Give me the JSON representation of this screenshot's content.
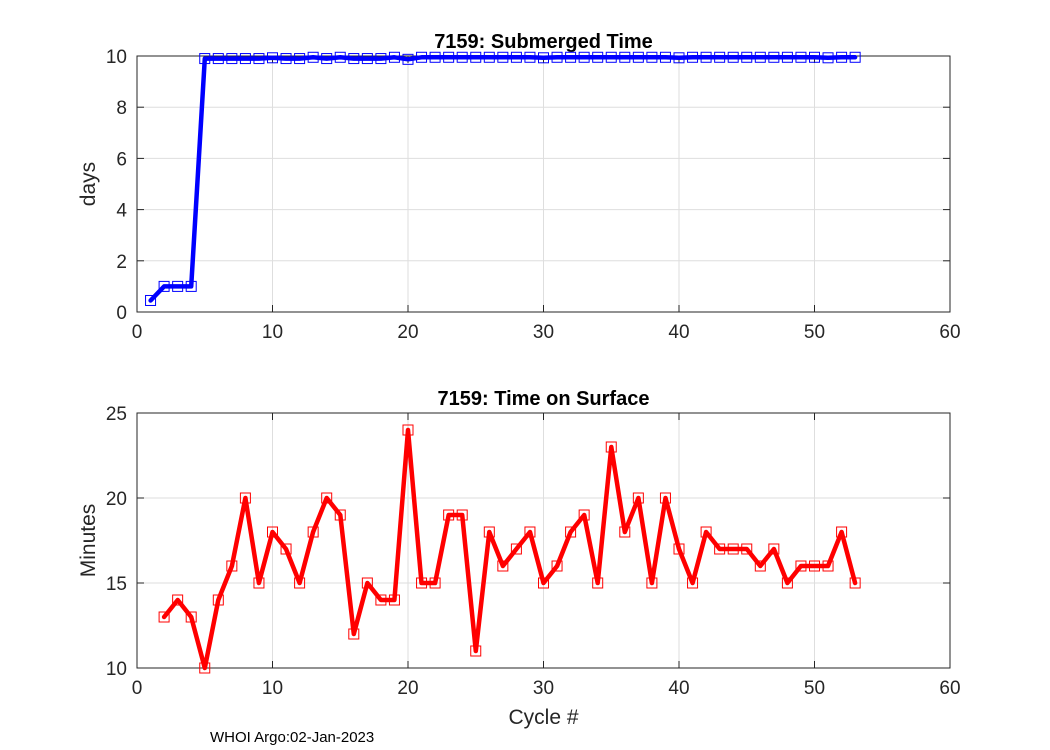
{
  "footer": {
    "text": "WHOI Argo:02-Jan-2023"
  },
  "chart_data": [
    {
      "type": "line",
      "title": "7159: Submerged Time",
      "xlabel": "",
      "ylabel": "days",
      "xlim": [
        0,
        60
      ],
      "ylim": [
        0,
        10
      ],
      "xticks": [
        0,
        10,
        20,
        30,
        40,
        50,
        60
      ],
      "yticks": [
        0,
        2,
        4,
        6,
        8,
        10
      ],
      "grid": true,
      "line_color": "#0000ff",
      "marker": "square",
      "series": [
        {
          "x": [
            1,
            2,
            3,
            4,
            5,
            6,
            7,
            8,
            9,
            10,
            11,
            12,
            13,
            14,
            15,
            16,
            17,
            18,
            19,
            20,
            21,
            22,
            23,
            24,
            25,
            26,
            27,
            28,
            29,
            30,
            31,
            32,
            33,
            34,
            35,
            36,
            37,
            38,
            39,
            40,
            41,
            42,
            43,
            44,
            45,
            46,
            47,
            48,
            49,
            50,
            51,
            52,
            53
          ],
          "y": [
            0.45,
            1.0,
            1.0,
            1.0,
            9.9,
            9.9,
            9.9,
            9.9,
            9.9,
            9.93,
            9.9,
            9.9,
            9.95,
            9.9,
            9.95,
            9.9,
            9.9,
            9.9,
            9.95,
            9.87,
            9.95,
            9.95,
            9.95,
            9.95,
            9.95,
            9.95,
            9.95,
            9.95,
            9.95,
            9.93,
            9.95,
            9.95,
            9.95,
            9.95,
            9.95,
            9.95,
            9.95,
            9.95,
            9.95,
            9.93,
            9.95,
            9.95,
            9.95,
            9.95,
            9.95,
            9.95,
            9.95,
            9.95,
            9.95,
            9.95,
            9.93,
            9.95,
            9.95
          ]
        }
      ]
    },
    {
      "type": "line",
      "title": "7159: Time on Surface",
      "xlabel": "Cycle #",
      "ylabel": "Minutes",
      "xlim": [
        0,
        60
      ],
      "ylim": [
        10,
        25
      ],
      "xticks": [
        0,
        10,
        20,
        30,
        40,
        50,
        60
      ],
      "yticks": [
        10,
        15,
        20,
        25
      ],
      "grid": true,
      "line_color": "#ff0000",
      "marker": "square",
      "series": [
        {
          "x": [
            2,
            3,
            4,
            5,
            6,
            7,
            8,
            9,
            10,
            11,
            12,
            13,
            14,
            15,
            16,
            17,
            18,
            19,
            20,
            21,
            22,
            23,
            24,
            25,
            26,
            27,
            28,
            29,
            30,
            31,
            32,
            33,
            34,
            35,
            36,
            37,
            38,
            39,
            40,
            41,
            42,
            43,
            44,
            45,
            46,
            47,
            48,
            49,
            50,
            51,
            52,
            53
          ],
          "y": [
            13,
            14,
            13,
            10,
            14,
            16,
            20,
            15,
            18,
            17,
            15,
            18,
            20,
            19,
            12,
            15,
            14,
            14,
            24,
            15,
            15,
            19,
            19,
            11,
            18,
            16,
            17,
            18,
            15,
            16,
            18,
            19,
            15,
            23,
            18,
            20,
            15,
            20,
            17,
            15,
            18,
            17,
            17,
            17,
            16,
            17,
            15,
            16,
            16,
            16,
            18,
            15
          ]
        }
      ]
    }
  ]
}
